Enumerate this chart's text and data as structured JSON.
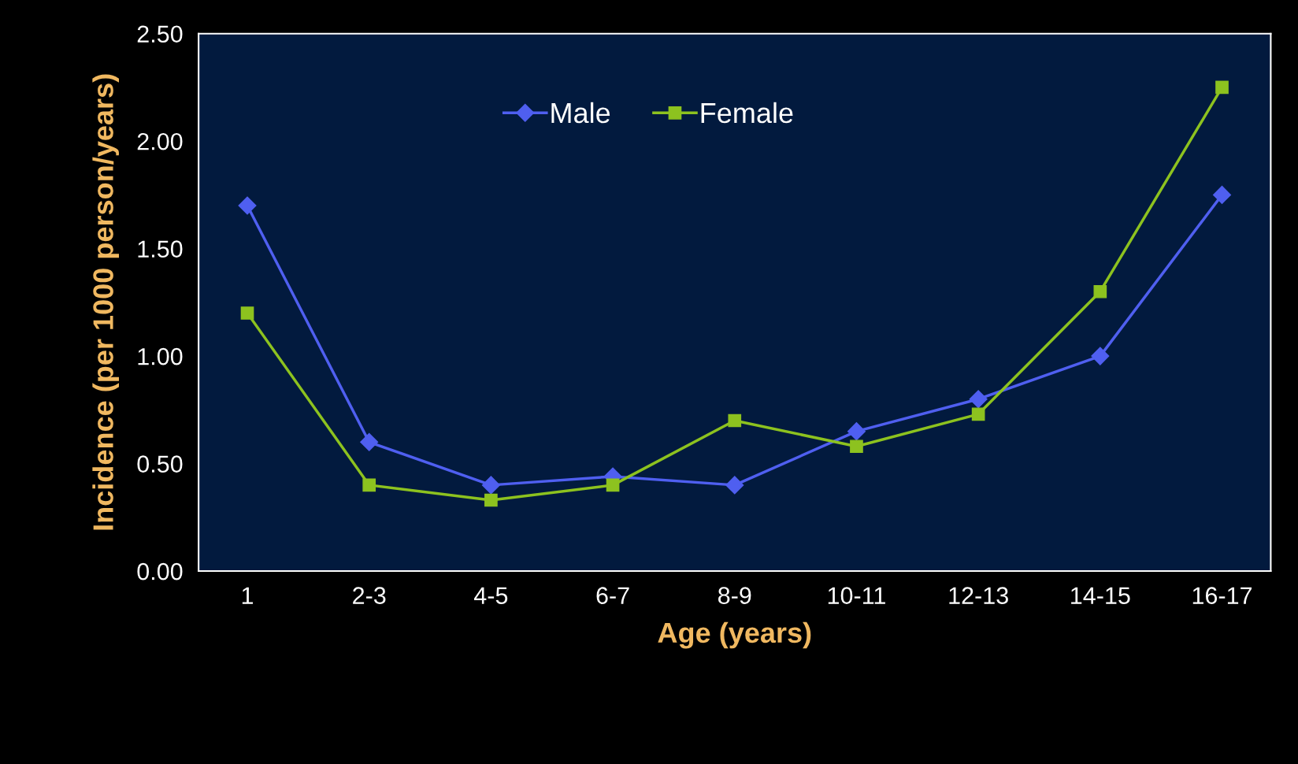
{
  "chart_data": {
    "type": "line",
    "xlabel": "Age (years)",
    "ylabel": "Incidence (per 1000 person/years)",
    "categories": [
      "1",
      "2-3",
      "4-5",
      "6-7",
      "8-9",
      "10-11",
      "12-13",
      "14-15",
      "16-17"
    ],
    "series": [
      {
        "name": "Male",
        "color": "#4f5ff0",
        "marker": "diamond",
        "values": [
          1.7,
          0.6,
          0.4,
          0.44,
          0.4,
          0.65,
          0.8,
          1.0,
          1.75
        ]
      },
      {
        "name": "Female",
        "color": "#8dc21f",
        "marker": "square",
        "values": [
          1.2,
          0.4,
          0.33,
          0.4,
          0.7,
          0.58,
          0.73,
          1.3,
          2.25
        ]
      }
    ],
    "ylim": [
      0,
      2.5
    ],
    "yticks": [
      {
        "value": 0,
        "label": "0.00"
      },
      {
        "value": 0.5,
        "label": "0.50"
      },
      {
        "value": 1,
        "label": "1.00"
      },
      {
        "value": 1.5,
        "label": "1.50"
      },
      {
        "value": 2,
        "label": "2.00"
      },
      {
        "value": 2.5,
        "label": "2.50"
      }
    ],
    "grid": false,
    "legend": "top",
    "line_style": "solid"
  }
}
